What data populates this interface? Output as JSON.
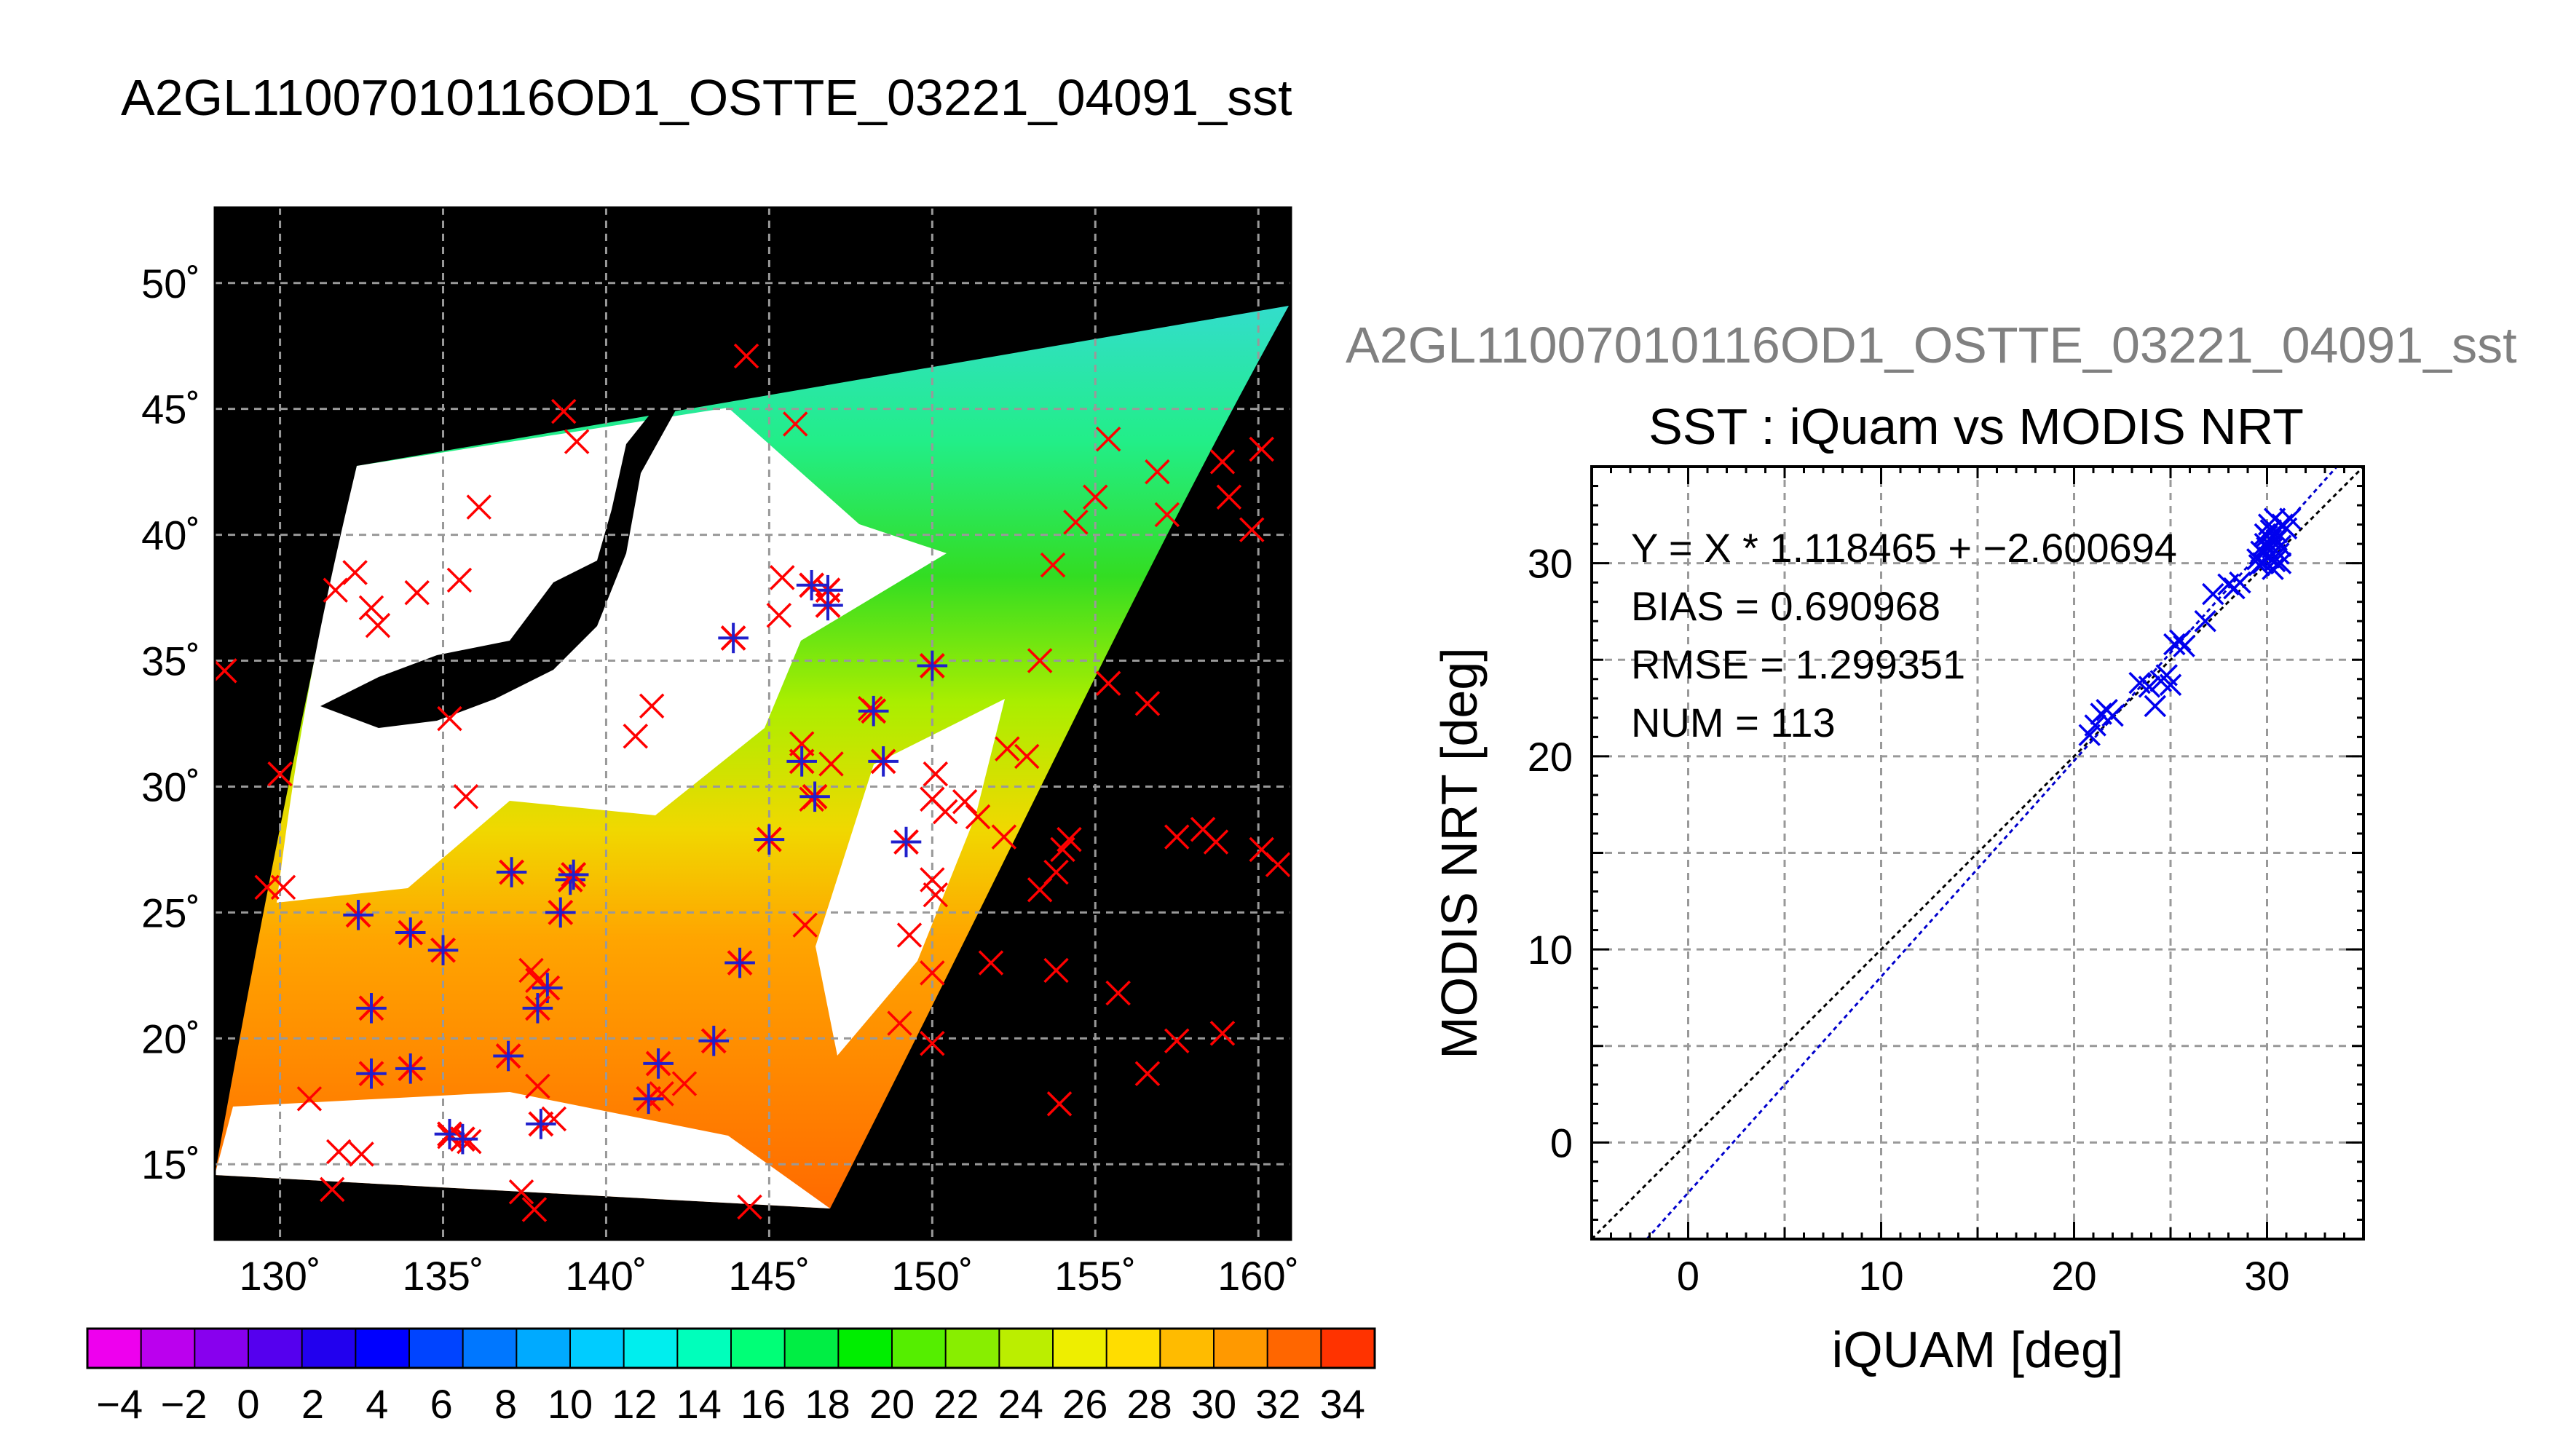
{
  "title": "A2GL11007010116OD1_OSTTE_03221_04091_sst",
  "chart_data": [
    {
      "type": "map",
      "title": "A2GL11007010116OD1_OSTTE_03221_04091_sst",
      "xlim": [
        128,
        161
      ],
      "ylim": [
        12,
        53
      ],
      "lon_ticks": [
        130,
        135,
        140,
        145,
        150,
        155,
        160
      ],
      "lat_ticks": [
        15,
        20,
        25,
        30,
        35,
        40,
        45,
        50
      ],
      "lon_tick_labels": [
        "130˚",
        "135˚",
        "140˚",
        "145˚",
        "150˚",
        "155˚",
        "160˚"
      ],
      "lat_tick_labels": [
        "15˚",
        "20˚",
        "25˚",
        "30˚",
        "35˚",
        "40˚",
        "45˚",
        "50˚"
      ],
      "grid": true,
      "colorbar": {
        "min": -5,
        "max": 35,
        "tick_labels": [
          "−4",
          "−2",
          "0",
          "2",
          "4",
          "6",
          "8",
          "10",
          "12",
          "14",
          "16",
          "18",
          "20",
          "22",
          "24",
          "26",
          "28",
          "30",
          "32",
          "34"
        ],
        "tick_values": [
          -4,
          -2,
          0,
          2,
          4,
          6,
          8,
          10,
          12,
          14,
          16,
          18,
          20,
          22,
          24,
          26,
          28,
          30,
          32,
          34
        ]
      },
      "series": [
        {
          "marker": "x",
          "color": "#ff0000",
          "points": [
            [
              128.3,
              34.6
            ],
            [
              130.0,
              30.5
            ],
            [
              129.6,
              26.0
            ],
            [
              130.1,
              26.0
            ],
            [
              131.7,
              37.8
            ],
            [
              132.3,
              38.5
            ],
            [
              132.8,
              37.1
            ],
            [
              133.0,
              36.4
            ],
            [
              134.2,
              37.7
            ],
            [
              135.5,
              38.2
            ],
            [
              136.1,
              41.1
            ],
            [
              135.2,
              32.7
            ],
            [
              135.7,
              29.6
            ],
            [
              141.4,
              33.2
            ],
            [
              140.9,
              32.0
            ],
            [
              138.7,
              44.9
            ],
            [
              139.1,
              43.7
            ],
            [
              144.3,
              47.1
            ],
            [
              145.8,
              44.4
            ],
            [
              145.4,
              38.3
            ],
            [
              145.3,
              36.8
            ],
            [
              146.0,
              31.7
            ],
            [
              146.9,
              30.9
            ],
            [
              148.1,
              33.1
            ],
            [
              150.1,
              30.5
            ],
            [
              150.4,
              29.0
            ],
            [
              150.0,
              29.5
            ],
            [
              151.0,
              29.4
            ],
            [
              151.4,
              28.8
            ],
            [
              152.3,
              31.5
            ],
            [
              152.9,
              31.2
            ],
            [
              152.2,
              28.0
            ],
            [
              153.7,
              38.8
            ],
            [
              153.3,
              35.0
            ],
            [
              155.4,
              43.8
            ],
            [
              155.0,
              41.5
            ],
            [
              154.4,
              40.5
            ],
            [
              156.9,
              42.5
            ],
            [
              157.2,
              40.8
            ],
            [
              158.9,
              42.9
            ],
            [
              159.1,
              41.5
            ],
            [
              160.1,
              43.4
            ],
            [
              159.8,
              40.2
            ],
            [
              155.4,
              34.1
            ],
            [
              156.6,
              33.3
            ],
            [
              157.5,
              28.0
            ],
            [
              158.3,
              28.3
            ],
            [
              158.7,
              27.8
            ],
            [
              160.1,
              27.5
            ],
            [
              160.6,
              26.9
            ],
            [
              154.2,
              27.9
            ],
            [
              154.0,
              27.5
            ],
            [
              153.8,
              26.6
            ],
            [
              153.3,
              25.9
            ],
            [
              150.0,
              26.3
            ],
            [
              150.1,
              25.7
            ],
            [
              149.3,
              24.1
            ],
            [
              150.0,
              22.6
            ],
            [
              151.8,
              23.0
            ],
            [
              153.8,
              22.7
            ],
            [
              155.7,
              21.8
            ],
            [
              157.5,
              19.9
            ],
            [
              158.9,
              20.2
            ],
            [
              156.6,
              18.6
            ],
            [
              150.0,
              19.8
            ],
            [
              149.0,
              20.6
            ],
            [
              153.9,
              17.4
            ],
            [
              146.1,
              24.5
            ],
            [
              144.4,
              13.3
            ],
            [
              141.7,
              17.8
            ],
            [
              142.4,
              18.2
            ],
            [
              137.9,
              22.3
            ],
            [
              137.7,
              22.7
            ],
            [
              138.4,
              16.8
            ],
            [
              137.9,
              18.1
            ],
            [
              137.4,
              13.9
            ],
            [
              137.8,
              13.2
            ],
            [
              135.8,
              15.9
            ],
            [
              135.2,
              16.1
            ],
            [
              132.5,
              15.4
            ],
            [
              131.8,
              15.5
            ],
            [
              131.6,
              14.0
            ],
            [
              130.9,
              17.6
            ],
            [
              146.3,
              29.5
            ]
          ]
        },
        {
          "marker": "asterisk",
          "color": "#2020cc",
          "points": [
            [
              143.9,
              35.9
            ],
            [
              146.8,
              37.8
            ],
            [
              146.8,
              37.2
            ],
            [
              146.3,
              38.0
            ],
            [
              150.0,
              34.8
            ],
            [
              148.2,
              33.0
            ],
            [
              148.5,
              31.0
            ],
            [
              146.4,
              29.6
            ],
            [
              149.2,
              27.8
            ],
            [
              145.0,
              27.9
            ],
            [
              146.0,
              31.0
            ],
            [
              138.9,
              26.3
            ],
            [
              139.0,
              26.5
            ],
            [
              137.1,
              26.6
            ],
            [
              138.6,
              25.0
            ],
            [
              134.0,
              24.2
            ],
            [
              135.0,
              23.5
            ],
            [
              132.4,
              24.9
            ],
            [
              132.8,
              21.2
            ],
            [
              132.8,
              18.6
            ],
            [
              134.0,
              18.8
            ],
            [
              137.0,
              19.3
            ],
            [
              138.2,
              22.0
            ],
            [
              137.9,
              21.2
            ],
            [
              138.0,
              16.6
            ],
            [
              135.2,
              16.2
            ],
            [
              135.6,
              16.0
            ],
            [
              141.6,
              19.0
            ],
            [
              141.3,
              17.6
            ],
            [
              143.3,
              19.9
            ],
            [
              144.1,
              23.0
            ]
          ]
        }
      ]
    },
    {
      "type": "scatter",
      "title": "SST : iQuam vs MODIS NRT",
      "subtitle": "A2GL11007010116OD1_OSTTE_03221_04091_sst",
      "xlabel": "iQUAM [deg]",
      "ylabel": "MODIS NRT [deg]",
      "xlim": [
        -5,
        35
      ],
      "ylim": [
        -5,
        35
      ],
      "x_ticks": [
        0,
        10,
        20,
        30
      ],
      "y_ticks": [
        0,
        10,
        20,
        30
      ],
      "x_tick_labels": [
        "0",
        "10",
        "20",
        "30"
      ],
      "y_tick_labels": [
        "0",
        "10",
        "20",
        "30"
      ],
      "grid": true,
      "stats": {
        "equation": "Y = X * 1.118465 + −2.600694",
        "bias": "BIAS = 0.690968",
        "rmse": "RMSE = 1.299351",
        "num": "NUM = 113"
      },
      "fit": {
        "slope": 1.118465,
        "intercept": -2.600694,
        "color": "#0000cc"
      },
      "identity_line": {
        "slope": 1,
        "intercept": 0,
        "color": "#000000"
      },
      "series": [
        {
          "marker": "x",
          "color": "#0000ee",
          "points": [
            [
              20.8,
              21.1
            ],
            [
              21.1,
              21.6
            ],
            [
              21.4,
              22.2
            ],
            [
              21.7,
              22.4
            ],
            [
              22.0,
              22.1
            ],
            [
              23.4,
              23.8
            ],
            [
              23.9,
              23.6
            ],
            [
              24.2,
              22.6
            ],
            [
              24.5,
              23.9
            ],
            [
              24.8,
              24.2
            ],
            [
              25.0,
              23.7
            ],
            [
              25.2,
              25.8
            ],
            [
              25.5,
              26.0
            ],
            [
              25.7,
              25.7
            ],
            [
              26.8,
              27.0
            ],
            [
              27.2,
              28.4
            ],
            [
              28.0,
              28.9
            ],
            [
              28.3,
              28.7
            ],
            [
              28.6,
              29.0
            ],
            [
              29.5,
              30.2
            ],
            [
              29.7,
              30.6
            ],
            [
              29.8,
              30.0
            ],
            [
              29.9,
              31.0
            ],
            [
              30.0,
              31.4
            ],
            [
              30.1,
              30.3
            ],
            [
              30.1,
              32.0
            ],
            [
              30.2,
              31.7
            ],
            [
              30.3,
              30.8
            ],
            [
              30.3,
              29.7
            ],
            [
              30.4,
              32.3
            ],
            [
              30.5,
              31.2
            ],
            [
              30.6,
              30.5
            ],
            [
              30.7,
              30.0
            ],
            [
              30.8,
              32.0
            ],
            [
              31.0,
              31.8
            ],
            [
              31.2,
              32.3
            ],
            [
              29.6,
              29.9
            ],
            [
              30.0,
              30.8
            ],
            [
              30.2,
              31.2
            ],
            [
              30.5,
              31.6
            ],
            [
              30.7,
              30.9
            ],
            [
              29.9,
              31.5
            ],
            [
              30.4,
              30.1
            ]
          ]
        }
      ]
    }
  ]
}
